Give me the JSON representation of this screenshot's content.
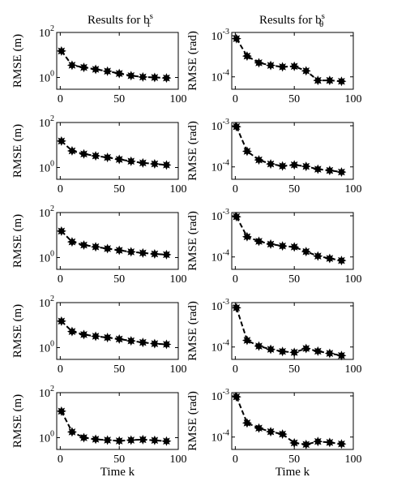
{
  "column_titles": [
    {
      "base": "Results for b",
      "sup": "s",
      "sub": "r"
    },
    {
      "base": "Results for b",
      "sup": "s",
      "sub": "θ"
    }
  ],
  "xlabel": "Time k",
  "chart_data": [
    {
      "type": "line",
      "marker": "filled-star",
      "line_style": "dashed",
      "color": "#000000",
      "ylabel": "RMSE (m)",
      "yscale": "log",
      "ylim": [
        0.3,
        100
      ],
      "yticks": [
        1,
        100
      ],
      "ytick_labels": [
        "10^0",
        "10^2"
      ],
      "xlim": [
        -3,
        100
      ],
      "xticks": [
        0,
        50,
        100
      ],
      "x": [
        1,
        10,
        20,
        30,
        40,
        50,
        60,
        70,
        80,
        90
      ],
      "values": [
        15,
        3.5,
        2.8,
        2.3,
        1.9,
        1.5,
        1.2,
        1.05,
        1.0,
        0.95
      ]
    },
    {
      "type": "line",
      "marker": "filled-star",
      "line_style": "dashed",
      "color": "#000000",
      "ylabel": "RMSE (rad)",
      "yscale": "log",
      "ylim": [
        5e-05,
        0.0012
      ],
      "yticks": [
        0.0001,
        0.001
      ],
      "ytick_labels": [
        "10^-4",
        "10^-3"
      ],
      "xlim": [
        -3,
        100
      ],
      "xticks": [
        0,
        50,
        100
      ],
      "x": [
        1,
        10,
        20,
        30,
        40,
        50,
        60,
        70,
        80,
        90
      ],
      "values": [
        0.00085,
        0.00032,
        0.00022,
        0.00019,
        0.000175,
        0.00018,
        0.00014,
        8.2e-05,
        8.2e-05,
        7.8e-05
      ]
    },
    {
      "type": "line",
      "marker": "filled-star",
      "line_style": "dashed",
      "color": "#000000",
      "ylabel": "RMSE (m)",
      "yscale": "log",
      "ylim": [
        0.3,
        100
      ],
      "yticks": [
        1,
        100
      ],
      "ytick_labels": [
        "10^0",
        "10^2"
      ],
      "xlim": [
        -3,
        100
      ],
      "xticks": [
        0,
        50,
        100
      ],
      "x": [
        1,
        10,
        20,
        30,
        40,
        50,
        60,
        70,
        80,
        90
      ],
      "values": [
        15,
        5.5,
        4.0,
        3.3,
        2.8,
        2.3,
        1.9,
        1.6,
        1.45,
        1.3
      ]
    },
    {
      "type": "line",
      "marker": "filled-star",
      "line_style": "dashed",
      "color": "#000000",
      "ylabel": "RMSE (rad)",
      "yscale": "log",
      "ylim": [
        5e-05,
        0.0012
      ],
      "yticks": [
        0.0001,
        0.001
      ],
      "ytick_labels": [
        "10^-4",
        "10^-3"
      ],
      "xlim": [
        -3,
        100
      ],
      "xticks": [
        0,
        50,
        100
      ],
      "x": [
        1,
        10,
        20,
        30,
        40,
        50,
        60,
        70,
        80,
        90
      ],
      "values": [
        0.00095,
        0.00024,
        0.000148,
        0.000118,
        0.000105,
        0.000112,
        0.000103,
        8.8e-05,
        8.2e-05,
        7.5e-05
      ]
    },
    {
      "type": "line",
      "marker": "filled-star",
      "line_style": "dashed",
      "color": "#000000",
      "ylabel": "RMSE (m)",
      "yscale": "log",
      "ylim": [
        0.3,
        100
      ],
      "yticks": [
        1,
        100
      ],
      "ytick_labels": [
        "10^0",
        "10^2"
      ],
      "xlim": [
        -3,
        100
      ],
      "xticks": [
        0,
        50,
        100
      ],
      "x": [
        1,
        10,
        20,
        30,
        40,
        50,
        60,
        70,
        80,
        90
      ],
      "values": [
        15,
        5.0,
        3.6,
        3.0,
        2.5,
        2.1,
        1.8,
        1.6,
        1.45,
        1.35
      ]
    },
    {
      "type": "line",
      "marker": "filled-star",
      "line_style": "dashed",
      "color": "#000000",
      "ylabel": "RMSE (rad)",
      "yscale": "log",
      "ylim": [
        5e-05,
        0.0012
      ],
      "yticks": [
        0.0001,
        0.001
      ],
      "ytick_labels": [
        "10^-4",
        "10^-3"
      ],
      "xlim": [
        -3,
        100
      ],
      "xticks": [
        0,
        50,
        100
      ],
      "x": [
        1,
        10,
        20,
        30,
        40,
        50,
        60,
        70,
        80,
        90
      ],
      "values": [
        0.00095,
        0.00031,
        0.00024,
        0.000205,
        0.000185,
        0.000175,
        0.000135,
        0.000105,
        9.2e-05,
        8.2e-05
      ]
    },
    {
      "type": "line",
      "marker": "filled-star",
      "line_style": "dashed",
      "color": "#000000",
      "ylabel": "RMSE (m)",
      "yscale": "log",
      "ylim": [
        0.3,
        100
      ],
      "yticks": [
        1,
        100
      ],
      "ytick_labels": [
        "10^0",
        "10^2"
      ],
      "xlim": [
        -3,
        100
      ],
      "xticks": [
        0,
        50,
        100
      ],
      "x": [
        1,
        10,
        20,
        30,
        40,
        50,
        60,
        70,
        80,
        90
      ],
      "values": [
        15,
        5.2,
        3.8,
        3.2,
        2.8,
        2.4,
        2.0,
        1.7,
        1.5,
        1.4
      ]
    },
    {
      "type": "line",
      "marker": "filled-star",
      "line_style": "dashed",
      "color": "#000000",
      "ylabel": "RMSE (rad)",
      "yscale": "log",
      "ylim": [
        5e-05,
        0.0012
      ],
      "yticks": [
        0.0001,
        0.001
      ],
      "ytick_labels": [
        "10^-4",
        "10^-3"
      ],
      "xlim": [
        -3,
        100
      ],
      "xticks": [
        0,
        50,
        100
      ],
      "x": [
        1,
        10,
        20,
        30,
        40,
        50,
        60,
        70,
        80,
        90
      ],
      "values": [
        0.0009,
        0.000145,
        0.000105,
        8.8e-05,
        7.8e-05,
        7.4e-05,
        9.2e-05,
        7.9e-05,
        7e-05,
        6.2e-05
      ]
    },
    {
      "type": "line",
      "marker": "filled-star",
      "line_style": "dashed",
      "color": "#000000",
      "ylabel": "RMSE (m)",
      "yscale": "log",
      "ylim": [
        0.3,
        100
      ],
      "yticks": [
        1,
        100
      ],
      "ytick_labels": [
        "10^0",
        "10^2"
      ],
      "xlim": [
        -3,
        100
      ],
      "xticks": [
        0,
        50,
        100
      ],
      "x": [
        1,
        10,
        20,
        30,
        40,
        50,
        60,
        70,
        80,
        90
      ],
      "values": [
        15,
        1.8,
        1.0,
        0.85,
        0.78,
        0.72,
        0.78,
        0.82,
        0.76,
        0.7
      ]
    },
    {
      "type": "line",
      "marker": "filled-star",
      "line_style": "dashed",
      "color": "#000000",
      "ylabel": "RMSE (rad)",
      "yscale": "log",
      "ylim": [
        5e-05,
        0.0012
      ],
      "yticks": [
        0.0001,
        0.001
      ],
      "ytick_labels": [
        "10^-4",
        "10^-3"
      ],
      "xlim": [
        -3,
        100
      ],
      "xticks": [
        0,
        50,
        100
      ],
      "x": [
        1,
        10,
        20,
        30,
        40,
        50,
        60,
        70,
        80,
        90
      ],
      "values": [
        0.00095,
        0.00022,
        0.000165,
        0.000135,
        0.000118,
        7.2e-05,
        6.6e-05,
        7.8e-05,
        7.4e-05,
        6.8e-05
      ]
    }
  ]
}
